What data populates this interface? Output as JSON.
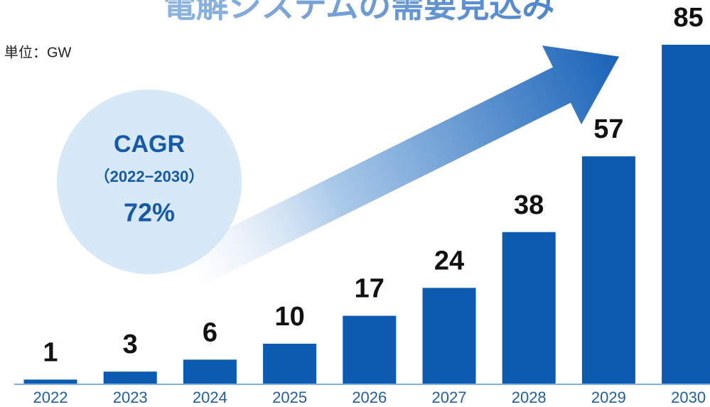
{
  "chart_data": {
    "type": "bar",
    "title": "電解システムの需要見込み",
    "unit_label": "単位：GW",
    "categories": [
      "2022",
      "2023",
      "2024",
      "2025",
      "2026",
      "2027",
      "2028",
      "2029",
      "2030"
    ],
    "values": [
      1,
      3,
      6,
      10,
      17,
      24,
      38,
      57,
      85
    ],
    "color": "#0b5cb0",
    "ylim": [
      0,
      85
    ],
    "annotation": {
      "line1": "CAGR",
      "line2": "（2022−2030）",
      "line3": "72%"
    }
  }
}
